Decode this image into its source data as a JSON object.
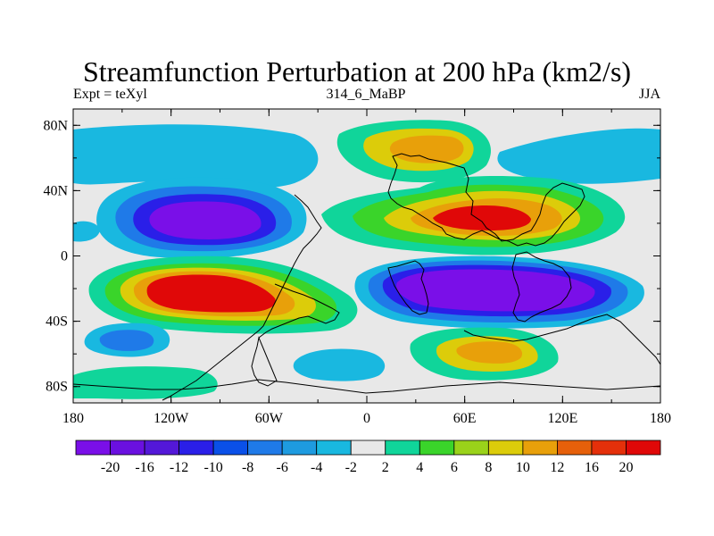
{
  "title": "Streamfunction Perturbation at 200 hPa (km2/s)",
  "subtitle_left": "Expt = teXyl",
  "subtitle_center": "314_6_MaBP",
  "subtitle_right": "JJA",
  "map": {
    "projection": "cylindrical-equidistant",
    "lon_range": [
      -180,
      180
    ],
    "lat_range": [
      -90,
      90
    ],
    "coastlines": "coarse-grid",
    "x_tick_labels": [
      "180",
      "120W",
      "60W",
      "0",
      "60E",
      "120E",
      "180"
    ],
    "y_tick_labels": [
      "80N",
      "40N",
      "0",
      "40S",
      "80S"
    ]
  },
  "colorbar": {
    "labels": [
      "-20",
      "-16",
      "-12",
      "-10",
      "-8",
      "-6",
      "-4",
      "-2",
      "2",
      "4",
      "6",
      "8",
      "10",
      "12",
      "16",
      "20"
    ],
    "colors": [
      "#7a0fe8",
      "#6a10e0",
      "#5318d8",
      "#2a1fe8",
      "#0a50e8",
      "#1f7ae8",
      "#1e9be0",
      "#19b8e0",
      "#e8e8e8",
      "#10d59a",
      "#3ad42a",
      "#9ad21a",
      "#dccc0a",
      "#e8a00a",
      "#e6600a",
      "#e4300a",
      "#e00808"
    ]
  },
  "field_colors": {
    "neutral": "#e8e8e8",
    "neg_weak": "#19b8e0",
    "neg_mid": "#1f7ae8",
    "neg_strong": "#2a1fe8",
    "neg_core": "#7a0fe8",
    "pos_weak": "#10d59a",
    "pos_mid": "#3ad42a",
    "pos_yellow": "#dccc0a",
    "pos_orange": "#e8a00a",
    "pos_core": "#e00808"
  }
}
